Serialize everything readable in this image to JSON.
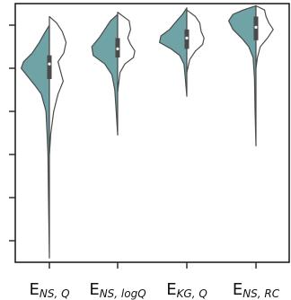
{
  "chart_data": {
    "type": "violin",
    "split": true,
    "categories": [
      {
        "name": "E_NS,Q",
        "main": "E",
        "sub": "NS, Q"
      },
      {
        "name": "E_NS,logQ",
        "main": "E",
        "sub": "NS, logQ"
      },
      {
        "name": "E_KG,Q",
        "main": "E",
        "sub": "KG, Q"
      },
      {
        "name": "E_NS,RC",
        "main": "E",
        "sub": "NS, RC"
      }
    ],
    "ylim": [
      -0.9,
      0.3
    ],
    "y_ticks": [
      -0.8,
      -0.6,
      -0.4,
      -0.2,
      0.0,
      0.2
    ],
    "y_tick_labels_visible": false,
    "colors": {
      "left_half": "#6fa3a6",
      "right_half": "#ffffff",
      "outline": "#4a4a4a",
      "box": "#4a4a4a"
    },
    "series": [
      {
        "category": "E_NS,Q",
        "left": {
          "min": -0.88,
          "max": 0.2,
          "profile": [
            [
              -0.88,
              0.0
            ],
            [
              -0.6,
              0.03
            ],
            [
              -0.4,
              0.05
            ],
            [
              -0.3,
              0.08
            ],
            [
              -0.2,
              0.12
            ],
            [
              -0.12,
              0.28
            ],
            [
              -0.08,
              0.5
            ],
            [
              -0.03,
              0.8
            ],
            [
              0.0,
              0.98
            ],
            [
              0.03,
              0.9
            ],
            [
              0.07,
              0.6
            ],
            [
              0.12,
              0.35
            ],
            [
              0.16,
              0.18
            ],
            [
              0.2,
              0.0
            ]
          ]
        },
        "right": {
          "min": -0.4,
          "max": 0.24,
          "profile": [
            [
              -0.4,
              0.0
            ],
            [
              -0.3,
              0.05
            ],
            [
              -0.2,
              0.15
            ],
            [
              -0.12,
              0.3
            ],
            [
              -0.06,
              0.48
            ],
            [
              -0.02,
              0.4
            ],
            [
              0.03,
              0.3
            ],
            [
              0.07,
              0.5
            ],
            [
              0.12,
              0.58
            ],
            [
              0.17,
              0.45
            ],
            [
              0.21,
              0.25
            ],
            [
              0.24,
              0.0
            ]
          ]
        },
        "q1": -0.05,
        "q3": 0.06,
        "median": 0.02
      },
      {
        "category": "E_NS,logQ",
        "left": {
          "min": -0.31,
          "max": 0.25,
          "profile": [
            [
              -0.31,
              0.0
            ],
            [
              -0.2,
              0.05
            ],
            [
              -0.1,
              0.1
            ],
            [
              -0.03,
              0.2
            ],
            [
              0.02,
              0.45
            ],
            [
              0.06,
              0.85
            ],
            [
              0.1,
              0.9
            ],
            [
              0.14,
              0.65
            ],
            [
              0.18,
              0.45
            ],
            [
              0.22,
              0.25
            ],
            [
              0.25,
              0.0
            ]
          ]
        },
        "right": {
          "min": -0.11,
          "max": 0.26,
          "profile": [
            [
              -0.11,
              0.0
            ],
            [
              -0.02,
              0.08
            ],
            [
              0.02,
              0.25
            ],
            [
              0.05,
              0.55
            ],
            [
              0.08,
              0.6
            ],
            [
              0.11,
              0.45
            ],
            [
              0.14,
              0.35
            ],
            [
              0.18,
              0.45
            ],
            [
              0.22,
              0.4
            ],
            [
              0.26,
              0.0
            ]
          ]
        },
        "q1": 0.05,
        "q3": 0.14,
        "median": 0.09
      },
      {
        "category": "E_KG,Q",
        "left": {
          "min": -0.13,
          "max": 0.28,
          "profile": [
            [
              -0.13,
              0.0
            ],
            [
              -0.05,
              0.05
            ],
            [
              0.02,
              0.1
            ],
            [
              0.06,
              0.25
            ],
            [
              0.09,
              0.55
            ],
            [
              0.12,
              0.95
            ],
            [
              0.15,
              0.9
            ],
            [
              0.18,
              0.6
            ],
            [
              0.22,
              0.35
            ],
            [
              0.25,
              0.15
            ],
            [
              0.28,
              0.0
            ]
          ]
        },
        "right": {
          "min": -0.02,
          "max": 0.27,
          "profile": [
            [
              -0.02,
              0.0
            ],
            [
              0.04,
              0.1
            ],
            [
              0.08,
              0.3
            ],
            [
              0.11,
              0.55
            ],
            [
              0.14,
              0.6
            ],
            [
              0.17,
              0.5
            ],
            [
              0.21,
              0.45
            ],
            [
              0.24,
              0.3
            ],
            [
              0.27,
              0.0
            ]
          ]
        },
        "q1": 0.09,
        "q3": 0.18,
        "median": 0.14
      },
      {
        "category": "E_NS,RC",
        "left": {
          "min": -0.36,
          "max": 0.29,
          "profile": [
            [
              -0.36,
              0.0
            ],
            [
              -0.2,
              0.03
            ],
            [
              -0.05,
              0.05
            ],
            [
              0.05,
              0.1
            ],
            [
              0.1,
              0.25
            ],
            [
              0.14,
              0.5
            ],
            [
              0.18,
              0.8
            ],
            [
              0.22,
              0.95
            ],
            [
              0.25,
              0.8
            ],
            [
              0.27,
              0.45
            ],
            [
              0.29,
              0.0
            ]
          ]
        },
        "right": {
          "min": 0.0,
          "max": 0.29,
          "profile": [
            [
              0.0,
              0.0
            ],
            [
              0.05,
              0.05
            ],
            [
              0.1,
              0.15
            ],
            [
              0.14,
              0.4
            ],
            [
              0.18,
              0.6
            ],
            [
              0.21,
              0.45
            ],
            [
              0.24,
              0.35
            ],
            [
              0.27,
              0.3
            ],
            [
              0.29,
              0.0
            ]
          ]
        },
        "q1": 0.13,
        "q3": 0.24,
        "median": 0.19
      }
    ]
  }
}
